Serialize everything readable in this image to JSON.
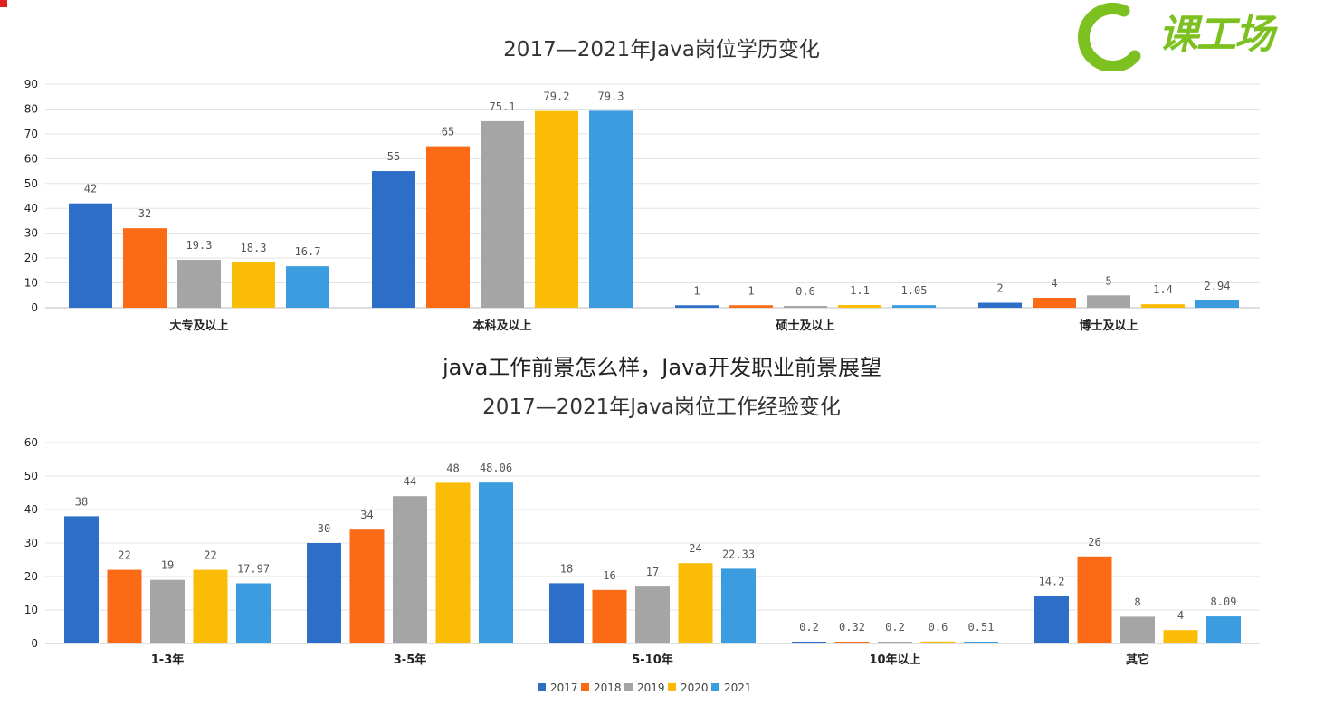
{
  "overlay_caption": "java工作前景怎么样，Java开发职业前景展望",
  "logo": {
    "text": "课工场",
    "color": "#7cc11f",
    "icon": "c-arc-logo-icon"
  },
  "colors": [
    "#2d6ec9",
    "#fb6a14",
    "#a5a5a5",
    "#fbbc05",
    "#3b9de0"
  ],
  "chart_data": [
    {
      "type": "bar",
      "title": "2017—2021年Java岗位学历变化",
      "categories": [
        "大专及以上",
        "本科及以上",
        "硕士及以上",
        "博士及以上"
      ],
      "series": [
        {
          "name": "2017",
          "values": [
            42,
            55,
            1,
            2
          ],
          "labels": [
            "42",
            "55",
            "1",
            "2"
          ]
        },
        {
          "name": "2018",
          "values": [
            32,
            65,
            1,
            4
          ],
          "labels": [
            "32",
            "65",
            "1",
            "4"
          ]
        },
        {
          "name": "2019",
          "values": [
            19.3,
            75.1,
            0.6,
            5
          ],
          "labels": [
            "19.3",
            "75.1",
            "0.6",
            "5"
          ]
        },
        {
          "name": "2020",
          "values": [
            18.3,
            79.2,
            1.1,
            1.4
          ],
          "labels": [
            "18.3",
            "79.2",
            "1.1",
            "1.4"
          ]
        },
        {
          "name": "2021",
          "values": [
            16.7,
            79.3,
            1.05,
            2.94
          ],
          "labels": [
            "16.7",
            "79.3",
            "1.05",
            "2.94"
          ]
        }
      ],
      "ylim": [
        0,
        90
      ],
      "yticks": [
        "0",
        "10",
        "20",
        "30",
        "40",
        "50",
        "60",
        "70",
        "80",
        "90"
      ],
      "grid": true,
      "legend": "bottom"
    },
    {
      "type": "bar",
      "title": "2017—2021年Java岗位工作经验变化",
      "categories": [
        "1-3年",
        "3-5年",
        "5-10年",
        "10年以上",
        "其它"
      ],
      "series": [
        {
          "name": "2017",
          "values": [
            38,
            30,
            18,
            0.2,
            14.2
          ],
          "labels": [
            "38",
            "30",
            "18",
            "0.2",
            "14.2"
          ]
        },
        {
          "name": "2018",
          "values": [
            22,
            34,
            16,
            0.32,
            26
          ],
          "labels": [
            "22",
            "34",
            "16",
            "0.32",
            "26"
          ]
        },
        {
          "name": "2019",
          "values": [
            19,
            44,
            17,
            0.2,
            8
          ],
          "labels": [
            "19",
            "44",
            "17",
            "0.2",
            "8"
          ]
        },
        {
          "name": "2020",
          "values": [
            22,
            48,
            24,
            0.6,
            4
          ],
          "labels": [
            "22",
            "48",
            "24",
            "0.6",
            "4"
          ]
        },
        {
          "name": "2021",
          "values": [
            17.97,
            48.06,
            22.33,
            0.51,
            8.09
          ],
          "labels": [
            "17.97",
            "48.06",
            "22.33",
            "0.51",
            "8.09"
          ]
        }
      ],
      "ylim": [
        0,
        60
      ],
      "yticks": [
        "0",
        "10",
        "20",
        "30",
        "40",
        "50",
        "60"
      ],
      "grid": true,
      "legend": "bottom"
    }
  ]
}
